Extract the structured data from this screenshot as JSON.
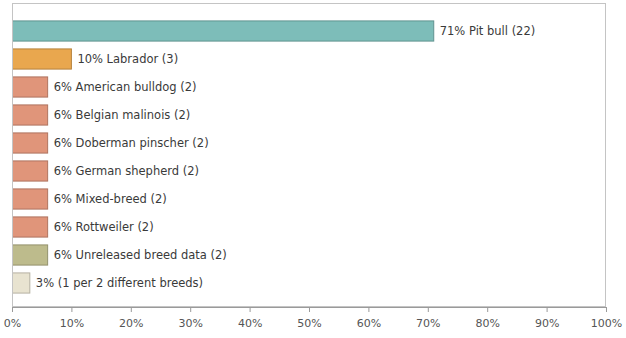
{
  "chart_data": {
    "type": "bar",
    "orientation": "horizontal",
    "categories": [
      null,
      null,
      null,
      null,
      null,
      null,
      null,
      null,
      null,
      null
    ],
    "values": [
      71,
      10,
      6,
      6,
      6,
      6,
      6,
      6,
      6,
      3
    ],
    "value_labels": [
      "71% Pit bull (22)",
      "10% Labrador (3)",
      "6% American bulldog (2)",
      "6% Belgian malinois (2)",
      "6% Doberman pinscher (2)",
      "6% German shepherd (2)",
      "6% Mixed-breed (2)",
      "6% Rottweiler (2)",
      "6% Unreleased breed data (2)",
      "3% (1 per 2 different breeds)"
    ],
    "colors": [
      "#7dbdb9",
      "#e9a74e",
      "#e0957a",
      "#e0957a",
      "#e0957a",
      "#e0957a",
      "#e0957a",
      "#e0957a",
      "#bdbb8c",
      "#e8e3d0"
    ],
    "xlim": [
      0,
      100
    ],
    "xticks": [
      {
        "value": 0,
        "label": "0%"
      },
      {
        "value": 10,
        "label": "10%"
      },
      {
        "value": 20,
        "label": "20%"
      },
      {
        "value": 30,
        "label": "30%"
      },
      {
        "value": 40,
        "label": "40%"
      },
      {
        "value": 50,
        "label": "50%"
      },
      {
        "value": 60,
        "label": "60%"
      },
      {
        "value": 70,
        "label": "70%"
      },
      {
        "value": 80,
        "label": "80%"
      },
      {
        "value": 90,
        "label": "90%"
      },
      {
        "value": 100,
        "label": "100%"
      }
    ],
    "grid": false,
    "data_labels": true,
    "tick_labels": "x"
  }
}
